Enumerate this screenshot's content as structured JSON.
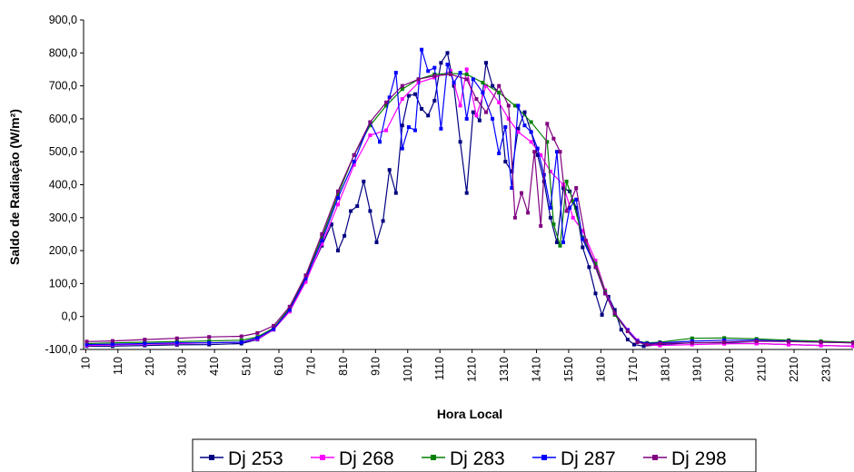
{
  "chart_data": {
    "type": "line",
    "xlabel": "Hora Local",
    "ylabel": "Saldo de Radiação (W/m²)",
    "y_ticks": [
      "900,0",
      "800,0",
      "700,0",
      "600,0",
      "500,0",
      "400,0",
      "300,0",
      "200,0",
      "100,0",
      "0,0",
      "-100,0"
    ],
    "ylim": [
      -100,
      900
    ],
    "x_tick_labels": [
      "10",
      "110",
      "210",
      "310",
      "410",
      "510",
      "610",
      "710",
      "810",
      "910",
      "1010",
      "1110",
      "1210",
      "1310",
      "1410",
      "1510",
      "1610",
      "1710",
      "1810",
      "1910",
      "2010",
      "2110",
      "2210",
      "2310"
    ],
    "x_unit": "hour",
    "xlim": [
      0.1,
      24.0
    ],
    "grid": false,
    "legend_position": "bottom",
    "series": [
      {
        "name": "Dj 253",
        "color": "#000080",
        "marker": "square",
        "x": [
          0.2,
          1.0,
          2.0,
          3.0,
          4.0,
          5.0,
          5.5,
          6.0,
          6.5,
          7.0,
          7.5,
          7.8,
          8.0,
          8.2,
          8.4,
          8.6,
          8.8,
          9.0,
          9.2,
          9.4,
          9.6,
          9.8,
          10.0,
          10.2,
          10.4,
          10.6,
          10.8,
          11.0,
          11.2,
          11.4,
          11.6,
          11.8,
          12.0,
          12.2,
          12.4,
          12.6,
          12.8,
          13.0,
          13.2,
          13.4,
          13.6,
          13.8,
          14.0,
          14.2,
          14.4,
          14.6,
          14.8,
          15.0,
          15.2,
          15.4,
          15.6,
          15.8,
          16.0,
          16.2,
          16.4,
          16.6,
          16.8,
          17.0,
          17.2,
          17.5,
          18.0,
          19.0,
          20.0,
          21.0,
          22.0,
          23.0,
          24.0
        ],
        "y": [
          -90,
          -90,
          -88,
          -86,
          -85,
          -82,
          -70,
          -40,
          20,
          110,
          215,
          280,
          200,
          245,
          320,
          335,
          410,
          320,
          225,
          290,
          445,
          375,
          580,
          670,
          675,
          630,
          610,
          655,
          770,
          800,
          700,
          530,
          375,
          620,
          595,
          770,
          700,
          680,
          470,
          440,
          570,
          620,
          560,
          490,
          410,
          300,
          225,
          390,
          380,
          330,
          210,
          150,
          70,
          5,
          60,
          20,
          -40,
          -70,
          -85,
          -90,
          -85,
          -80,
          -80,
          -82,
          -85,
          -88,
          -90
        ]
      },
      {
        "name": "Dj 268",
        "color": "#FF00FF",
        "marker": "square",
        "x": [
          0.2,
          1.0,
          2.0,
          3.0,
          4.0,
          5.0,
          5.5,
          6.0,
          6.5,
          7.0,
          7.5,
          8.0,
          8.5,
          9.0,
          9.5,
          10.0,
          10.5,
          11.0,
          11.5,
          11.8,
          12.0,
          12.3,
          12.6,
          13.0,
          13.3,
          13.6,
          14.0,
          14.3,
          14.6,
          15.0,
          15.3,
          15.6,
          16.0,
          16.3,
          16.6,
          17.0,
          17.3,
          17.6,
          18.0,
          19.0,
          20.0,
          21.0,
          22.0,
          23.0,
          24.0
        ],
        "y": [
          -88,
          -86,
          -84,
          -82,
          -80,
          -78,
          -68,
          -40,
          15,
          105,
          220,
          340,
          460,
          550,
          565,
          660,
          710,
          725,
          745,
          640,
          750,
          610,
          700,
          650,
          600,
          560,
          530,
          490,
          440,
          400,
          300,
          260,
          170,
          80,
          10,
          -40,
          -72,
          -85,
          -88,
          -85,
          -83,
          -82,
          -85,
          -88,
          -90
        ]
      },
      {
        "name": "Dj 283",
        "color": "#008000",
        "marker": "square",
        "x": [
          0.2,
          1.0,
          2.0,
          3.0,
          4.0,
          5.0,
          5.5,
          6.0,
          6.5,
          7.0,
          7.5,
          8.0,
          8.5,
          9.0,
          9.5,
          10.0,
          10.5,
          11.0,
          11.5,
          12.0,
          12.5,
          13.0,
          13.5,
          14.0,
          14.5,
          14.7,
          14.9,
          15.1,
          15.3,
          15.6,
          16.0,
          16.3,
          16.6,
          17.0,
          17.3,
          17.6,
          18.0,
          19.0,
          20.0,
          21.0,
          22.0,
          23.0,
          24.0
        ],
        "y": [
          -82,
          -80,
          -78,
          -76,
          -74,
          -72,
          -62,
          -35,
          25,
          120,
          240,
          370,
          490,
          580,
          640,
          690,
          720,
          735,
          738,
          735,
          710,
          680,
          640,
          590,
          530,
          280,
          215,
          410,
          350,
          240,
          160,
          75,
          5,
          -45,
          -75,
          -80,
          -78,
          -66,
          -65,
          -68,
          -72,
          -75,
          -78
        ]
      },
      {
        "name": "Dj 287",
        "color": "#0000FF",
        "marker": "square",
        "x": [
          0.2,
          1.0,
          2.0,
          3.0,
          4.0,
          5.0,
          5.5,
          6.0,
          6.5,
          7.0,
          7.5,
          8.0,
          8.5,
          9.0,
          9.3,
          9.6,
          9.8,
          10.0,
          10.2,
          10.4,
          10.6,
          10.8,
          11.0,
          11.2,
          11.4,
          11.6,
          11.8,
          12.0,
          12.2,
          12.5,
          12.8,
          13.0,
          13.2,
          13.4,
          13.6,
          13.8,
          14.0,
          14.2,
          14.4,
          14.6,
          14.8,
          15.0,
          15.2,
          15.4,
          15.6,
          16.0,
          16.3,
          16.6,
          17.0,
          17.3,
          17.6,
          18.0,
          19.0,
          20.0,
          21.0,
          22.0,
          23.0,
          24.0
        ],
        "y": [
          -85,
          -84,
          -82,
          -80,
          -80,
          -78,
          -65,
          -38,
          20,
          115,
          230,
          360,
          470,
          590,
          530,
          665,
          740,
          510,
          575,
          565,
          810,
          745,
          755,
          570,
          765,
          710,
          740,
          600,
          720,
          680,
          600,
          495,
          575,
          390,
          640,
          580,
          560,
          510,
          430,
          330,
          500,
          225,
          330,
          355,
          235,
          150,
          70,
          10,
          -42,
          -75,
          -82,
          -80,
          -75,
          -72,
          -72,
          -75,
          -78,
          -80
        ]
      },
      {
        "name": "Dj 298",
        "color": "#800080",
        "marker": "square",
        "x": [
          0.2,
          1.0,
          2.0,
          3.0,
          4.0,
          5.0,
          5.5,
          6.0,
          6.5,
          7.0,
          7.5,
          8.0,
          8.5,
          9.0,
          9.5,
          10.0,
          10.5,
          11.0,
          11.5,
          12.0,
          12.3,
          12.6,
          13.0,
          13.3,
          13.5,
          13.7,
          13.9,
          14.1,
          14.3,
          14.5,
          14.7,
          14.9,
          15.1,
          15.4,
          15.7,
          16.0,
          16.3,
          16.6,
          17.0,
          17.3,
          17.6,
          18.0,
          19.0,
          20.0,
          21.0,
          22.0,
          23.0,
          24.0
        ],
        "y": [
          -76,
          -74,
          -70,
          -66,
          -62,
          -60,
          -50,
          -28,
          30,
          125,
          250,
          380,
          490,
          590,
          650,
          700,
          720,
          730,
          735,
          720,
          660,
          620,
          700,
          640,
          300,
          375,
          315,
          500,
          275,
          585,
          540,
          500,
          320,
          390,
          230,
          150,
          70,
          10,
          -45,
          -78,
          -85,
          -82,
          -80,
          -78,
          -75,
          -76,
          -78,
          -80
        ]
      }
    ]
  }
}
